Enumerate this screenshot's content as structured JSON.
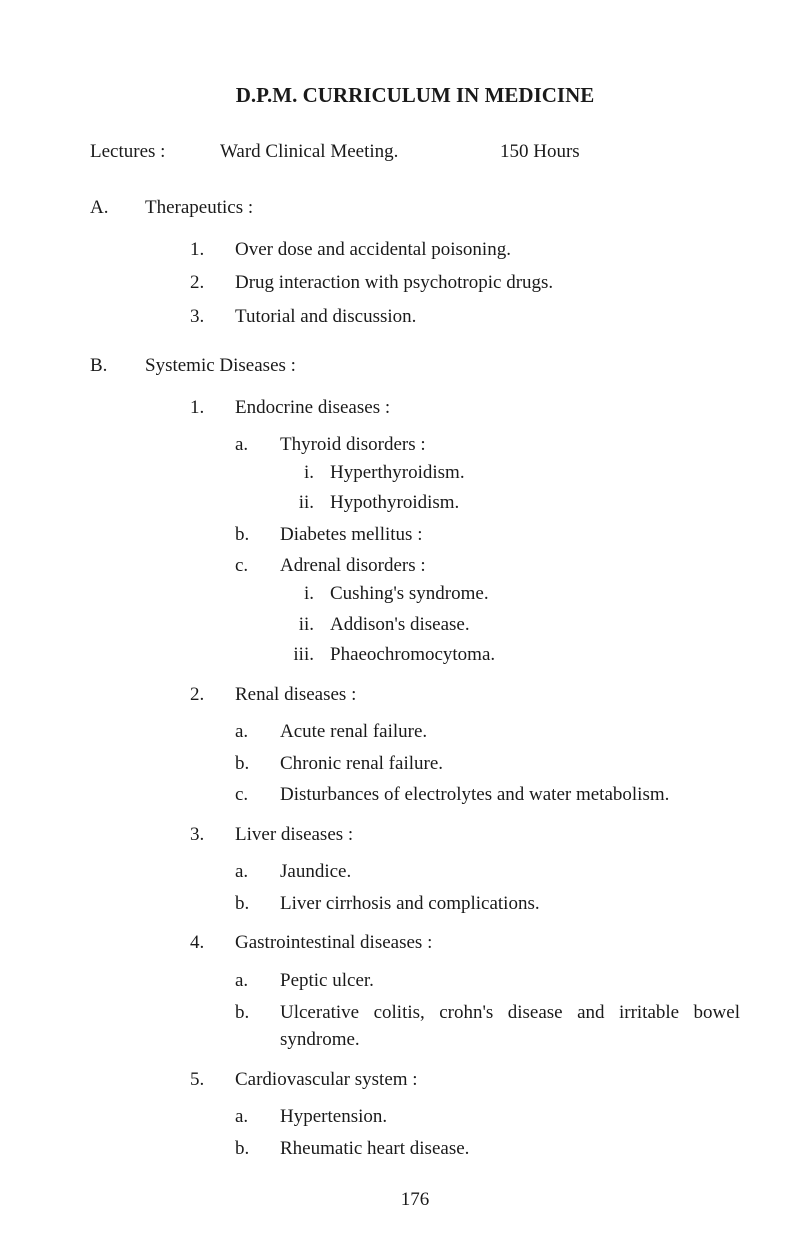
{
  "title": "D.P.M. CURRICULUM IN MEDICINE",
  "lectures": {
    "label": "Lectures :",
    "meeting": "Ward Clinical Meeting.",
    "hours": "150 Hours"
  },
  "sectionA": {
    "letter": "A.",
    "title": "Therapeutics :",
    "items": [
      {
        "n": "1.",
        "text": "Over dose and accidental poisoning."
      },
      {
        "n": "2.",
        "text": "Drug interaction with psychotropic drugs."
      },
      {
        "n": "3.",
        "text": "Tutorial and discussion."
      }
    ]
  },
  "sectionB": {
    "letter": "B.",
    "title": "Systemic Diseases :",
    "items": [
      {
        "n": "1.",
        "heading": "Endocrine diseases :",
        "subs": [
          {
            "a": "a.",
            "text": "Thyroid disorders :",
            "romans": [
              {
                "r": "i.",
                "text": "Hyperthyroidism."
              },
              {
                "r": "ii.",
                "text": "Hypothyroidism."
              }
            ]
          },
          {
            "a": "b.",
            "text": "Diabetes mellitus :"
          },
          {
            "a": "c.",
            "text": "Adrenal disorders :",
            "romans": [
              {
                "r": "i.",
                "text": "Cushing's syndrome."
              },
              {
                "r": "ii.",
                "text": "Addison's disease."
              },
              {
                "r": "iii.",
                "text": "Phaeochromocytoma."
              }
            ]
          }
        ]
      },
      {
        "n": "2.",
        "heading": "Renal diseases :",
        "subs": [
          {
            "a": "a.",
            "text": "Acute renal failure."
          },
          {
            "a": "b.",
            "text": "Chronic renal failure."
          },
          {
            "a": "c.",
            "text": "Disturbances of electrolytes and water metabolism."
          }
        ]
      },
      {
        "n": "3.",
        "heading": "Liver diseases :",
        "subs": [
          {
            "a": "a.",
            "text": "Jaundice."
          },
          {
            "a": "b.",
            "text": "Liver cirrhosis and complications."
          }
        ]
      },
      {
        "n": "4.",
        "heading": "Gastrointestinal diseases :",
        "subs": [
          {
            "a": "a.",
            "text": "Peptic ulcer."
          },
          {
            "a": "b.",
            "text": "Ulcerative colitis, crohn's disease and irritable bowel syndrome."
          }
        ]
      },
      {
        "n": "5.",
        "heading": "Cardiovascular system :",
        "subs": [
          {
            "a": "a.",
            "text": "Hypertension."
          },
          {
            "a": "b.",
            "text": "Rheumatic heart disease."
          }
        ]
      }
    ]
  },
  "pageNumber": "176",
  "style": {
    "background": "#ffffff",
    "textColor": "#1a1a1a",
    "fontFamily": "Georgia, 'Times New Roman', serif",
    "titleFontSize": 21,
    "bodyFontSize": 19
  }
}
